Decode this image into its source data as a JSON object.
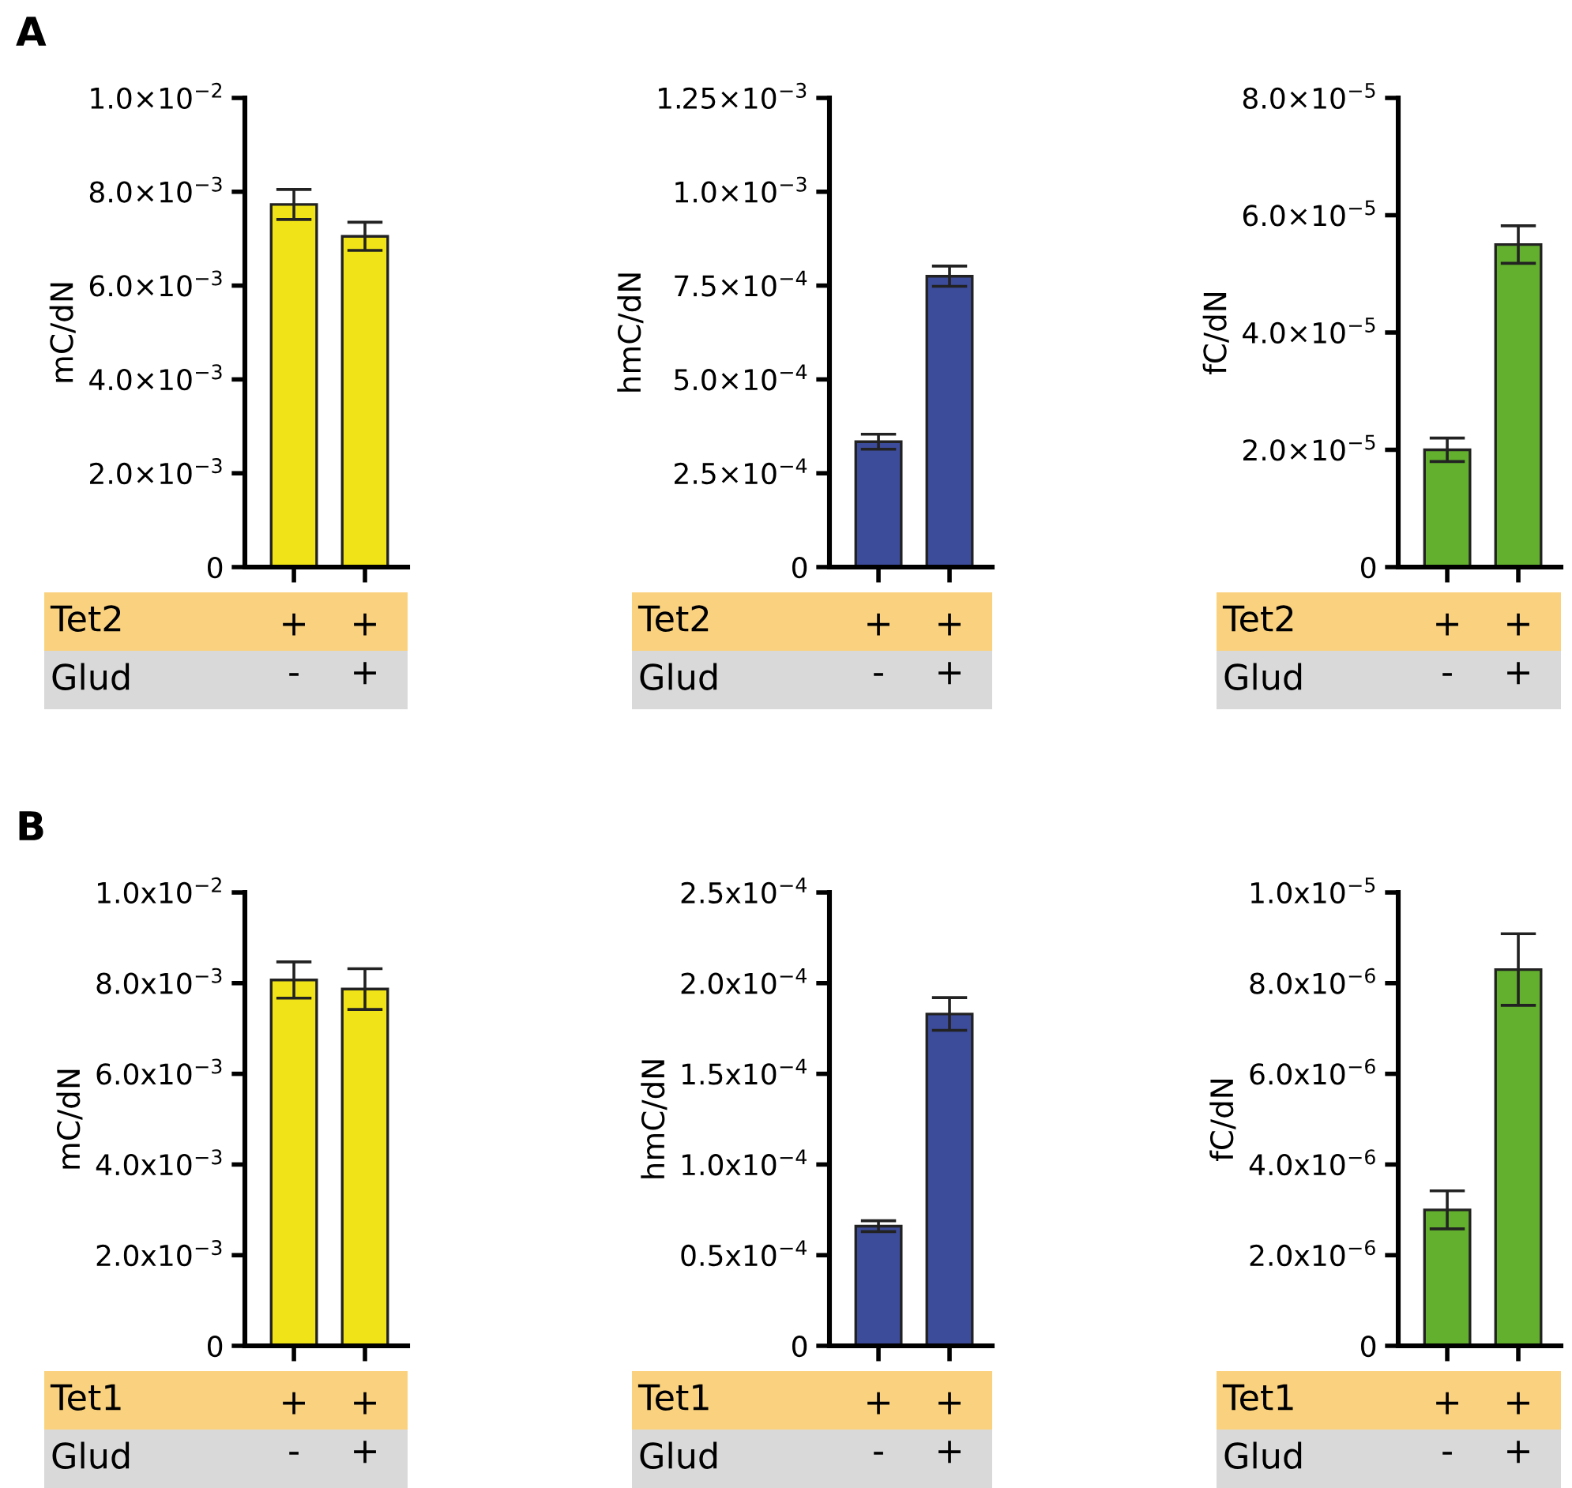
{
  "chart_data": [
    {
      "type": "bar",
      "title": "A",
      "ylabel": "mC/dN",
      "categories": [
        "+\n-",
        "+\n+"
      ],
      "annotations": [
        "Tet2",
        "Glud"
      ],
      "color": "#f0e418",
      "values": [
        0.00773,
        0.00705
      ],
      "errors": [
        0.00032,
        0.0003
      ],
      "ylim": [
        0,
        0.01
      ],
      "yticks": [
        0,
        {
          "value": 0.002,
          "label": "2.0×10$^{−3}$"
        },
        {
          "value": 0.004,
          "label": "4.0×10$^{−3}$"
        },
        {
          "value": 0.006,
          "label": "6.0×10$^{−3}$"
        },
        {
          "value": 0.008,
          "label": "8.0×10$^{−3}$"
        },
        {
          "value": 0.01,
          "label": "1.0×10$^{−2}$"
        }
      ]
    },
    {
      "type": "bar",
      "ylabel": "hmC/dN",
      "categories": [
        "+\n-",
        "+\n+"
      ],
      "annotations": [
        "Tet2",
        "Glud"
      ],
      "color": "#3c4b9a",
      "values": [
        0.000334,
        0.000775
      ],
      "errors": [
        2e-05,
        2.7e-05
      ],
      "ylim": [
        0,
        0.00125
      ],
      "yticks": [
        0,
        {
          "value": 0.00025,
          "label": "2.5×10$^{−4}$"
        },
        {
          "value": 0.0005,
          "label": "5.0×10$^{−4}$"
        },
        {
          "value": 0.00075,
          "label": "7.5×10$^{−4}$"
        },
        {
          "value": 0.001,
          "label": "1.0×10$^{−3}$"
        },
        {
          "value": 0.00125,
          "label": "1.25×10$^{−3}$"
        }
      ]
    },
    {
      "type": "bar",
      "ylabel": "fC/dN",
      "categories": [
        "+\n-",
        "+\n+"
      ],
      "annotations": [
        "Tet2",
        "Glud"
      ],
      "color": "#63b02e",
      "values": [
        2e-05,
        5.5e-05
      ],
      "errors": [
        2e-06,
        3.2e-06
      ],
      "ylim": [
        0,
        8e-05
      ],
      "yticks": [
        0,
        {
          "value": 2e-05,
          "label": "2.0×10$^{−5}$"
        },
        {
          "value": 4e-05,
          "label": "4.0×10$^{−5}$"
        },
        {
          "value": 6e-05,
          "label": "6.0×10$^{−5}$"
        },
        {
          "value": 8e-05,
          "label": "8.0×10$^{−5}$"
        }
      ]
    },
    {
      "type": "bar",
      "title": "B",
      "ylabel": "mC/dN",
      "categories": [
        "+\n-",
        "+\n+"
      ],
      "annotations": [
        "Tet1",
        "Glud"
      ],
      "color": "#f0e418",
      "values": [
        0.00807,
        0.00787
      ],
      "errors": [
        0.0004,
        0.00045
      ],
      "ylim": [
        0,
        0.01
      ],
      "yticks": [
        0,
        {
          "value": 0.002,
          "label": "2.0x10$^{−3}$"
        },
        {
          "value": 0.004,
          "label": "4.0x10$^{−3}$"
        },
        {
          "value": 0.006,
          "label": "6.0x10$^{−3}$"
        },
        {
          "value": 0.008,
          "label": "8.0x10$^{−3}$"
        },
        {
          "value": 0.01,
          "label": "1.0x10$^{−2}$"
        }
      ]
    },
    {
      "type": "bar",
      "ylabel": "hmC/dN",
      "categories": [
        "+\n-",
        "+\n+"
      ],
      "annotations": [
        "Tet1",
        "Glud"
      ],
      "color": "#3c4b9a",
      "values": [
        6.6e-05,
        0.000183
      ],
      "errors": [
        3e-06,
        9e-06
      ],
      "ylim": [
        0,
        0.00025
      ],
      "yticks": [
        0,
        {
          "value": 5e-05,
          "label": "0.5x10$^{−4}$"
        },
        {
          "value": 0.0001,
          "label": "1.0x10$^{−4}$"
        },
        {
          "value": 0.00015,
          "label": "1.5x10$^{−4}$"
        },
        {
          "value": 0.0002,
          "label": "2.0x10$^{−4}$"
        },
        {
          "value": 0.00025,
          "label": "2.5x10$^{−4}$"
        }
      ]
    },
    {
      "type": "bar",
      "ylabel": "fC/dN",
      "categories": [
        "+\n-",
        "+\n+"
      ],
      "annotations": [
        "Tet1",
        "Glud"
      ],
      "color": "#63b02e",
      "values": [
        3e-06,
        8.3e-06
      ],
      "errors": [
        4.2e-07,
        7.9e-07
      ],
      "ylim": [
        0,
        1e-05
      ],
      "yticks": [
        0,
        {
          "value": 2e-06,
          "label": "2.0x10$^{−6}$"
        },
        {
          "value": 4e-06,
          "label": "4.0x10$^{−6}$"
        },
        {
          "value": 6e-06,
          "label": "6.0x10$^{−6}$"
        },
        {
          "value": 8e-06,
          "label": "8.0x10$^{−6}$"
        },
        {
          "value": 1e-05,
          "label": "1.0x10$^{−5}$"
        }
      ]
    }
  ]
}
